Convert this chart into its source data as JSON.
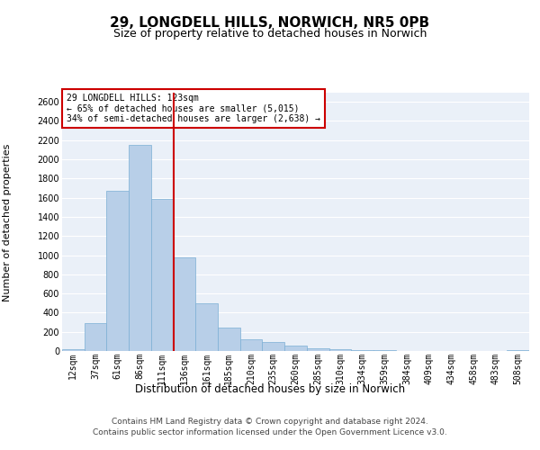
{
  "title1": "29, LONGDELL HILLS, NORWICH, NR5 0PB",
  "title2": "Size of property relative to detached houses in Norwich",
  "xlabel": "Distribution of detached houses by size in Norwich",
  "ylabel": "Number of detached properties",
  "categories": [
    "12sqm",
    "37sqm",
    "61sqm",
    "86sqm",
    "111sqm",
    "136sqm",
    "161sqm",
    "185sqm",
    "210sqm",
    "235sqm",
    "260sqm",
    "285sqm",
    "310sqm",
    "334sqm",
    "359sqm",
    "384sqm",
    "409sqm",
    "434sqm",
    "458sqm",
    "483sqm",
    "508sqm"
  ],
  "values": [
    20,
    290,
    1670,
    2150,
    1590,
    975,
    500,
    240,
    120,
    95,
    55,
    30,
    15,
    8,
    5,
    3,
    2,
    2,
    1,
    1,
    5
  ],
  "bar_color": "#b8cfe8",
  "bar_edge_color": "#7bafd4",
  "vline_color": "#cc0000",
  "annotation_text": "29 LONGDELL HILLS: 123sqm\n← 65% of detached houses are smaller (5,015)\n34% of semi-detached houses are larger (2,638) →",
  "annotation_box_color": "#ffffff",
  "annotation_box_edge": "#cc0000",
  "ylim": [
    0,
    2700
  ],
  "yticks": [
    0,
    200,
    400,
    600,
    800,
    1000,
    1200,
    1400,
    1600,
    1800,
    2000,
    2200,
    2400,
    2600
  ],
  "background_color": "#eaf0f8",
  "footer1": "Contains HM Land Registry data © Crown copyright and database right 2024.",
  "footer2": "Contains public sector information licensed under the Open Government Licence v3.0.",
  "title1_fontsize": 11,
  "title2_fontsize": 9,
  "xlabel_fontsize": 8.5,
  "ylabel_fontsize": 8,
  "tick_fontsize": 7,
  "footer_fontsize": 6.5
}
